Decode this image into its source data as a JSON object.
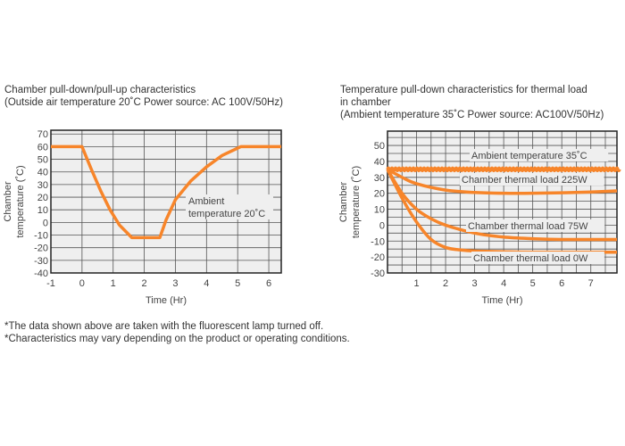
{
  "left": {
    "title_line1": "Chamber pull-down/pull-up characteristics",
    "title_line2": "(Outside air temperature 20˚C Power source: AC 100V/50Hz)"
  },
  "right": {
    "title_line1": "Temperature pull-down characteristics for thermal load",
    "title_line2": "in chamber",
    "title_line3": "(Ambient temperature 35˚C  Power source: AC100V/50Hz)"
  },
  "notes": [
    "*The data shown above are taken with the fluorescent lamp turned off.",
    "*Characteristics may vary depending on the product or operating conditions."
  ],
  "colors": {
    "line": "#f7852a",
    "plot_bg": "#efefef",
    "grid": "#555555"
  },
  "chart_data": [
    {
      "type": "line",
      "xlabel": "Time (Hr)",
      "ylabel": "Chamber temperature (˚C)",
      "xlim": [
        -1,
        6.4
      ],
      "ylim": [
        -40,
        73
      ],
      "xticks": [
        -1,
        0,
        1,
        2,
        3,
        4,
        5,
        6
      ],
      "yticks": [
        70,
        60,
        50,
        40,
        30,
        20,
        10,
        0,
        -10,
        -20,
        -30,
        -40
      ],
      "grid": true,
      "annotation": [
        "Ambient",
        "temperature 20˚C"
      ],
      "series": [
        {
          "x": [
            -1,
            0,
            0.3,
            0.6,
            0.9,
            1.2,
            1.6,
            2.5,
            2.7,
            3,
            3.5,
            4,
            4.5,
            5.1,
            6.4
          ],
          "y": [
            60,
            60,
            42,
            25,
            10,
            -2,
            -12,
            -12,
            2,
            18,
            33,
            44,
            53,
            60,
            60
          ]
        }
      ]
    },
    {
      "type": "line",
      "xlabel": "Time (Hr)",
      "ylabel": "Chamber temperature (˚C)",
      "xlim": [
        0,
        7.9
      ],
      "ylim": [
        -30,
        59
      ],
      "xticks": [
        1,
        2,
        3,
        4,
        5,
        6,
        7
      ],
      "yticks": [
        50,
        40,
        30,
        20,
        10,
        0,
        -10,
        -20,
        -30
      ],
      "grid": true,
      "series": [
        {
          "name": "Ambient temperature 35˚C",
          "x": [
            0,
            7.9
          ],
          "y": [
            35,
            35
          ]
        },
        {
          "name": "Chamber thermal load 225W",
          "x": [
            0,
            0.5,
            1,
            2,
            3,
            4,
            5,
            6,
            7,
            7.9
          ],
          "y": [
            35,
            30,
            26,
            22,
            20.5,
            20,
            20,
            20.3,
            20.8,
            21.5
          ]
        },
        {
          "name": "Chamber thermal load 75W",
          "x": [
            0,
            0.5,
            1,
            1.5,
            2,
            3,
            4,
            5,
            6,
            7.9
          ],
          "y": [
            35,
            20,
            10,
            4,
            0,
            -5,
            -7.5,
            -8.5,
            -9,
            -9
          ]
        },
        {
          "name": "Chamber thermal load 0W",
          "x": [
            0,
            0.5,
            1,
            1.5,
            2,
            2.5,
            3,
            4,
            5,
            7.9
          ],
          "y": [
            35,
            17,
            2,
            -9,
            -14,
            -15.5,
            -16.2,
            -16.7,
            -17,
            -17
          ]
        }
      ]
    }
  ]
}
